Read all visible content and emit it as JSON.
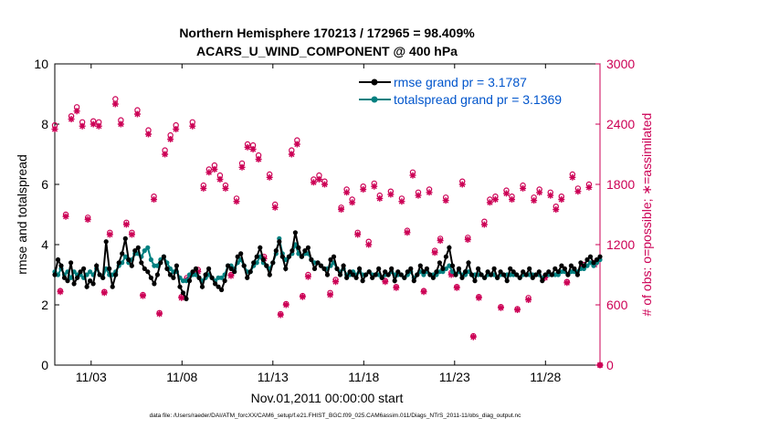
{
  "chart_data": {
    "type": "line",
    "title_line1": "Northern Hemisphere 170213 / 172965 = 98.409%",
    "title_line2": "ACARS_U_WIND_COMPONENT @ 400 hPa",
    "xlabel": "Nov.01,2011 00:00:00 start",
    "ylabel_left": "rmse and totalspread",
    "ylabel_right": "# of obs: o=possible; ∗=assimilated",
    "footer": "data file: /Users/raeder/DAI/ATM_forcXX/CAM6_setup/f.e21.FHIST_BGC.f09_025.CAM6assim.011/Diags_NTrS_2011-11/obs_diag_output.nc",
    "x_range_days": [
      1.0,
      31.0
    ],
    "x_ticks": [
      {
        "day": 3,
        "label": "11/03"
      },
      {
        "day": 8,
        "label": "11/08"
      },
      {
        "day": 13,
        "label": "11/13"
      },
      {
        "day": 18,
        "label": "11/18"
      },
      {
        "day": 23,
        "label": "11/23"
      },
      {
        "day": 28,
        "label": "11/28"
      }
    ],
    "ylim_left": [
      0,
      10
    ],
    "yticks_left": [
      "0",
      "2",
      "4",
      "6",
      "8",
      "10"
    ],
    "ylim_right": [
      0,
      3000
    ],
    "yticks_right": [
      "0",
      "600",
      "1200",
      "1800",
      "2400",
      "3000"
    ],
    "colors": {
      "rmse": "#000000",
      "spread": "#008080",
      "obs": "#cc0055",
      "legend_text": "#0055cc"
    },
    "legend": {
      "rmse_label": "rmse grand pr = 3.1787",
      "spread_label": "totalspread grand pr = 3.1369"
    },
    "series": [
      {
        "name": "rmse",
        "values": [
          3.0,
          3.5,
          3.3,
          2.9,
          2.8,
          3.4,
          2.7,
          2.9,
          3.1,
          3.2,
          2.6,
          2.8,
          2.7,
          3.3,
          3.0,
          2.9,
          4.1,
          3.2,
          2.6,
          3.0,
          3.4,
          3.7,
          4.2,
          3.5,
          3.3,
          3.8,
          3.9,
          3.4,
          3.2,
          3.1,
          2.9,
          2.7,
          3.0,
          3.4,
          3.6,
          3.2,
          3.0,
          2.9,
          3.3,
          2.6,
          2.4,
          2.2,
          2.8,
          3.1,
          3.2,
          2.9,
          2.6,
          3.0,
          3.2,
          2.9,
          2.7,
          2.6,
          2.5,
          2.8,
          3.3,
          3.2,
          3.1,
          3.6,
          3.7,
          3.3,
          2.9,
          3.1,
          3.4,
          3.6,
          3.9,
          3.5,
          3.3,
          3.0,
          3.4,
          3.8,
          4.1,
          3.6,
          3.2,
          3.6,
          3.8,
          4.4,
          3.9,
          3.6,
          3.8,
          3.9,
          3.5,
          3.2,
          3.4,
          3.3,
          3.2,
          3.0,
          3.5,
          3.6,
          3.2,
          3.0,
          3.3,
          2.9,
          3.1,
          3.0,
          2.9,
          3.2,
          2.8,
          3.0,
          3.1,
          2.9,
          3.0,
          3.2,
          2.9,
          3.1,
          3.0,
          3.2,
          2.8,
          3.1,
          3.0,
          2.9,
          3.1,
          3.2,
          2.8,
          3.0,
          3.3,
          3.1,
          3.2,
          3.0,
          2.9,
          3.1,
          3.4,
          3.2,
          3.6,
          3.9,
          3.3,
          3.0,
          3.2,
          2.9,
          3.1,
          3.4,
          3.0,
          2.8,
          3.2,
          3.0,
          2.9,
          3.1,
          3.0,
          3.2,
          2.9,
          3.1,
          3.0,
          2.8,
          3.2,
          3.1,
          3.0,
          2.9,
          3.1,
          3.0,
          3.2,
          2.9,
          3.0,
          3.1,
          2.8,
          3.0,
          3.1,
          3.0,
          3.2,
          3.1,
          3.3,
          3.2,
          3.0,
          3.3,
          3.2,
          3.0,
          3.4,
          3.3,
          3.5,
          3.6,
          3.4,
          3.5,
          3.6
        ]
      },
      {
        "name": "totalspread",
        "values": [
          3.1,
          3.0,
          3.2,
          3.0,
          3.1,
          2.9,
          3.1,
          3.0,
          3.0,
          2.9,
          3.0,
          3.1,
          3.0,
          3.2,
          3.0,
          2.9,
          3.2,
          3.0,
          3.0,
          3.1,
          3.3,
          3.4,
          3.6,
          3.4,
          3.5,
          3.7,
          3.7,
          3.6,
          3.8,
          3.9,
          3.5,
          3.3,
          3.3,
          3.5,
          3.6,
          3.4,
          3.2,
          3.1,
          3.1,
          2.9,
          2.8,
          2.8,
          3.0,
          3.0,
          3.0,
          2.9,
          2.8,
          2.9,
          3.0,
          2.9,
          2.8,
          2.9,
          2.9,
          3.0,
          3.3,
          3.3,
          3.2,
          3.4,
          3.5,
          3.3,
          3.1,
          3.1,
          3.3,
          3.4,
          3.6,
          3.4,
          3.3,
          3.2,
          3.4,
          3.7,
          4.2,
          3.7,
          3.5,
          3.6,
          3.7,
          4.0,
          3.7,
          3.6,
          3.7,
          3.7,
          3.5,
          3.4,
          3.4,
          3.3,
          3.2,
          3.2,
          3.3,
          3.4,
          3.2,
          3.1,
          3.2,
          3.0,
          3.0,
          3.1,
          3.0,
          3.1,
          3.0,
          3.0,
          3.1,
          3.0,
          3.0,
          3.0,
          2.9,
          3.0,
          3.0,
          3.1,
          3.0,
          3.0,
          3.0,
          2.9,
          3.0,
          3.1,
          2.9,
          3.0,
          3.1,
          3.0,
          3.1,
          3.0,
          3.0,
          3.0,
          3.1,
          3.1,
          3.2,
          3.3,
          3.1,
          3.0,
          3.1,
          3.0,
          3.0,
          3.1,
          3.0,
          3.0,
          3.0,
          3.0,
          2.9,
          3.0,
          3.0,
          3.0,
          2.9,
          3.0,
          3.0,
          3.0,
          3.0,
          3.0,
          3.0,
          2.9,
          3.0,
          3.0,
          3.0,
          3.0,
          3.0,
          3.0,
          2.9,
          3.0,
          3.0,
          3.0,
          3.0,
          3.0,
          3.1,
          3.1,
          3.0,
          3.1,
          3.1,
          3.1,
          3.2,
          3.2,
          3.3,
          3.4,
          3.3,
          3.4,
          3.5
        ]
      },
      {
        "name": "obs_assimilated",
        "values": [
          2350,
          730,
          1480,
          2450,
          2530,
          2380,
          1450,
          2400,
          2380,
          720,
          1300,
          2600,
          2400,
          1400,
          1300,
          2500,
          690,
          2300,
          1650,
          510,
          2100,
          2250,
          2350,
          670,
          850,
          2380,
          930,
          1760,
          1920,
          1950,
          1850,
          1760,
          890,
          1630,
          1970,
          2170,
          2150,
          2050,
          1060,
          1870,
          1570,
          500,
          600,
          2100,
          2200,
          680,
          880,
          1820,
          1850,
          1800,
          700,
          830,
          1550,
          1720,
          1620,
          1300,
          1750,
          1200,
          1780,
          1660,
          830,
          1700,
          770,
          1630,
          1320,
          1890,
          1690,
          730,
          1720,
          1120,
          1240,
          1640,
          900,
          770,
          1800,
          1250,
          280,
          670,
          1400,
          1620,
          1650,
          570,
          1710,
          1650,
          550,
          1760,
          650,
          1640,
          1720,
          870,
          1690,
          1550,
          1650,
          820,
          1870,
          1730,
          980,
          1770,
          1000,
          0
        ]
      },
      {
        "name": "obs_possible",
        "values": [
          2390,
          740,
          1500,
          2480,
          2570,
          2420,
          1470,
          2430,
          2420,
          730,
          1320,
          2650,
          2440,
          1420,
          1320,
          2540,
          700,
          2340,
          1680,
          520,
          2140,
          2290,
          2390,
          680,
          870,
          2420,
          950,
          1790,
          1950,
          1990,
          1890,
          1790,
          900,
          1660,
          2010,
          2200,
          2190,
          2090,
          1080,
          1900,
          1600,
          510,
          610,
          2140,
          2240,
          690,
          900,
          1850,
          1890,
          1830,
          720,
          850,
          1570,
          1750,
          1650,
          1320,
          1780,
          1230,
          1810,
          1690,
          840,
          1730,
          780,
          1660,
          1340,
          1920,
          1720,
          740,
          1750,
          1140,
          1260,
          1670,
          920,
          780,
          1830,
          1270,
          290,
          680,
          1430,
          1650,
          1680,
          580,
          1740,
          1680,
          560,
          1790,
          670,
          1670,
          1750,
          880,
          1720,
          1580,
          1680,
          830,
          1900,
          1760,
          1000,
          1800,
          1020,
          0
        ]
      }
    ]
  }
}
